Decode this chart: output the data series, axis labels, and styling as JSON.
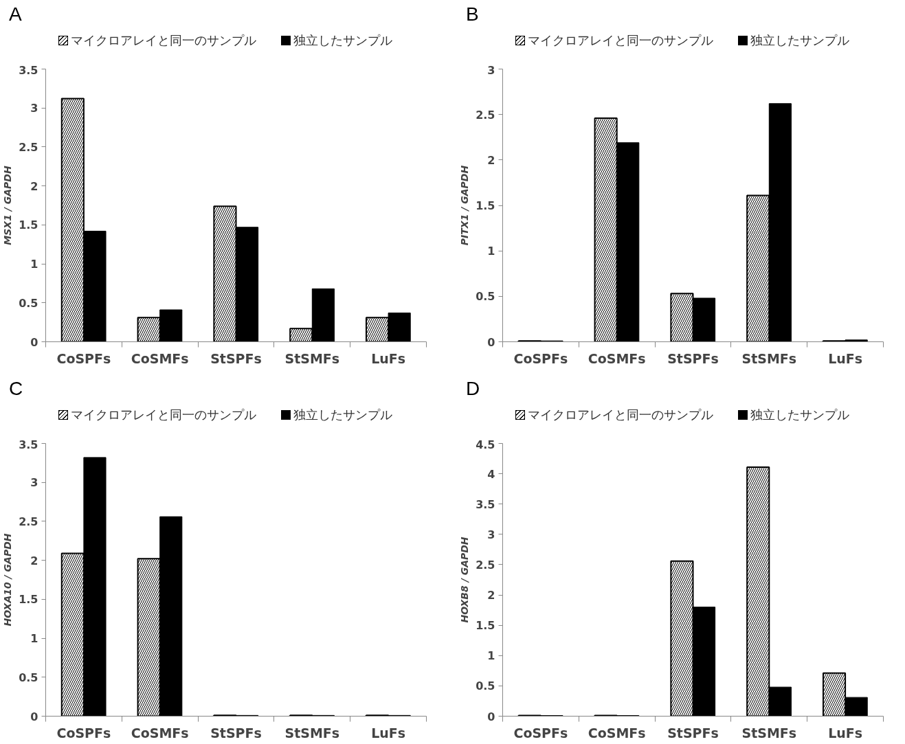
{
  "chart_data": [
    {
      "type": "bar",
      "title": "A",
      "ylabel": "MSX1 / GAPDH",
      "categories": [
        "CoSPFs",
        "CoSMFs",
        "StSPFs",
        "StSMFs",
        "LuFs"
      ],
      "ylim": [
        0,
        3.5
      ],
      "yticks": [
        0,
        0.5,
        1,
        1.5,
        2,
        2.5,
        3,
        3.5
      ],
      "grid": false,
      "legend": "top",
      "series": [
        {
          "name": "マイクロアレイと同一のサンプル",
          "color": "#ffffff",
          "values": [
            3.12,
            0.31,
            1.74,
            0.17,
            0.31
          ]
        },
        {
          "name": "独立したサンプル",
          "color": "#000000",
          "values": [
            1.42,
            0.41,
            1.47,
            0.68,
            0.37
          ]
        }
      ]
    },
    {
      "type": "bar",
      "title": "B",
      "ylabel": "PITX1 / GAPDH",
      "categories": [
        "CoSPFs",
        "CoSMFs",
        "StSPFs",
        "StSMFs",
        "LuFs"
      ],
      "ylim": [
        0,
        3
      ],
      "yticks": [
        0,
        0.5,
        1,
        1.5,
        2,
        2.5,
        3
      ],
      "grid": false,
      "legend": "top",
      "series": [
        {
          "name": "マイクロアレイと同一のサンプル",
          "color": "#ffffff",
          "values": [
            0.01,
            2.46,
            0.53,
            1.61,
            0.01
          ]
        },
        {
          "name": "独立したサンプル",
          "color": "#000000",
          "values": [
            0.01,
            2.19,
            0.48,
            2.62,
            0.02
          ]
        }
      ]
    },
    {
      "type": "bar",
      "title": "C",
      "ylabel": "HOXA10 / GAPDH",
      "categories": [
        "CoSPFs",
        "CoSMFs",
        "StSPFs",
        "StSMFs",
        "LuFs"
      ],
      "ylim": [
        0,
        3.5
      ],
      "yticks": [
        0,
        0.5,
        1,
        1.5,
        2,
        2.5,
        3,
        3.5
      ],
      "grid": false,
      "legend": "top",
      "series": [
        {
          "name": "マイクロアレイと同一のサンプル",
          "color": "#ffffff",
          "values": [
            2.09,
            2.02,
            0.01,
            0.01,
            0.01
          ]
        },
        {
          "name": "独立したサンプル",
          "color": "#000000",
          "values": [
            3.32,
            2.56,
            0.01,
            0.01,
            0.01
          ]
        }
      ]
    },
    {
      "type": "bar",
      "title": "D",
      "ylabel": "HOXB8 / GAPDH",
      "categories": [
        "CoSPFs",
        "CoSMFs",
        "StSPFs",
        "StSMFs",
        "LuFs"
      ],
      "ylim": [
        0,
        4.5
      ],
      "yticks": [
        0,
        0.5,
        1,
        1.5,
        2,
        2.5,
        3,
        3.5,
        4,
        4.5
      ],
      "grid": false,
      "legend": "top",
      "series": [
        {
          "name": "マイクロアレイと同一のサンプル",
          "color": "#ffffff",
          "values": [
            0.01,
            0.01,
            2.56,
            4.11,
            0.71
          ]
        },
        {
          "name": "独立したサンプル",
          "color": "#000000",
          "values": [
            0.01,
            0.01,
            1.8,
            0.48,
            0.31
          ]
        }
      ]
    }
  ]
}
